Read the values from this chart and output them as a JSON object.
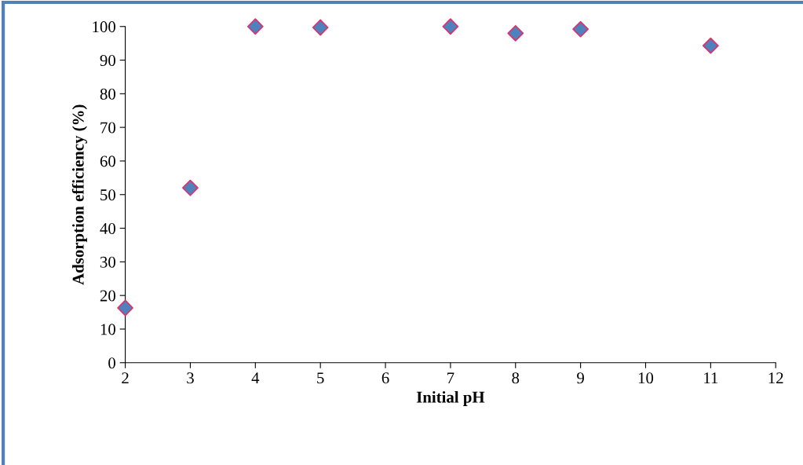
{
  "chart_data": {
    "type": "scatter",
    "xlabel": "Initial pH",
    "ylabel": "Adsorption efficiency (%)",
    "x": [
      2,
      3,
      4,
      5,
      7,
      8,
      9,
      11
    ],
    "series": [
      {
        "color": "#4f81bd",
        "values": [
          16.3,
          52,
          100,
          99.7,
          100,
          98,
          99.2,
          94.3
        ]
      }
    ],
    "xlim": [
      2,
      12
    ],
    "xticks": [
      2,
      3,
      4,
      5,
      6,
      7,
      8,
      9,
      10,
      11,
      12
    ],
    "ylim": [
      0,
      100
    ],
    "yticks": [
      0,
      10,
      20,
      30,
      40,
      50,
      60,
      70,
      80,
      90,
      100
    ],
    "grid": false,
    "marker": "diamond"
  }
}
